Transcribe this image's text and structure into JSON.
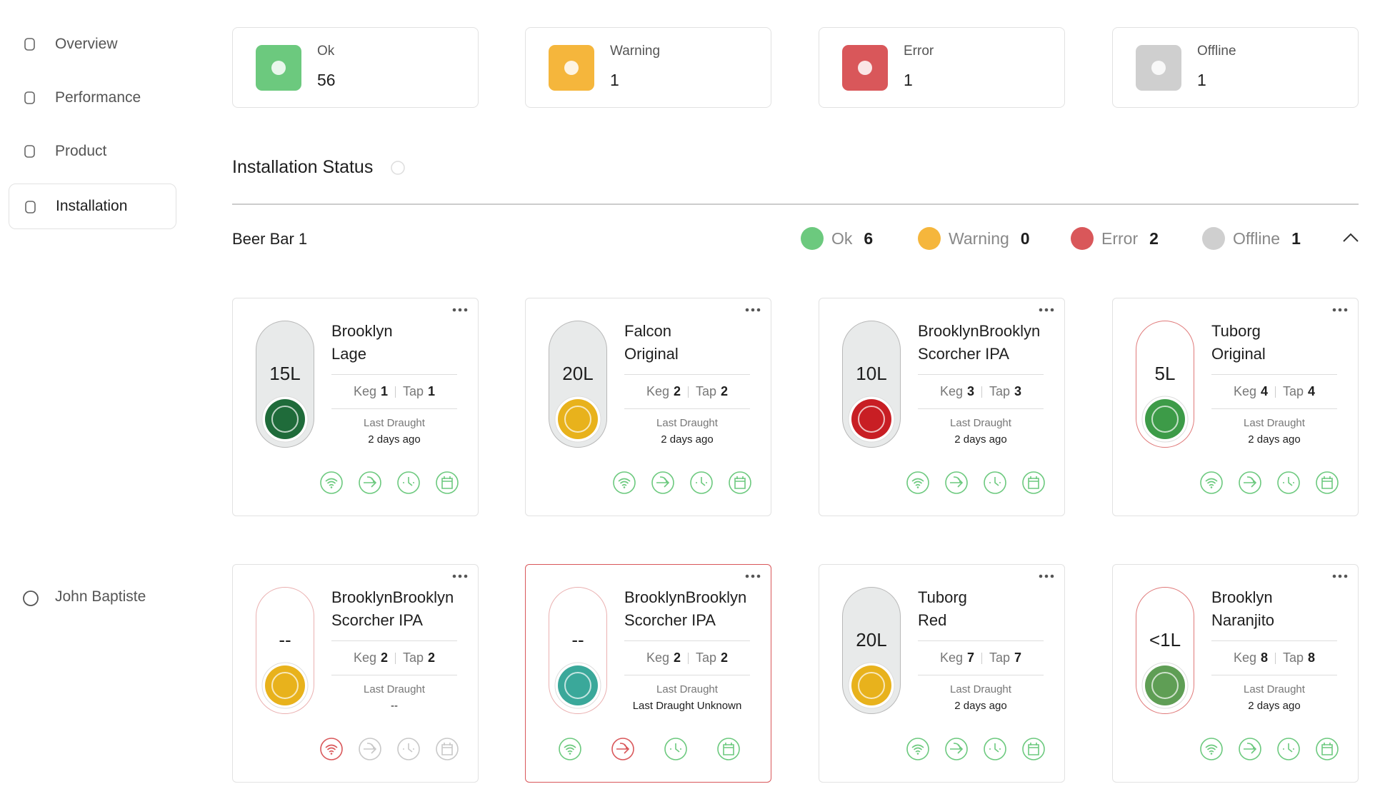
{
  "sidebar": {
    "nav": [
      "Overview",
      "Performance",
      "Product",
      "Installation"
    ],
    "active": 3,
    "user": "John Baptiste"
  },
  "summary": [
    {
      "label": "Ok",
      "value": 56,
      "color": "#6cc97e"
    },
    {
      "label": "Warning",
      "value": 1,
      "color": "#f5b63c"
    },
    {
      "label": "Error",
      "value": 1,
      "color": "#d9575a"
    },
    {
      "label": "Offline",
      "value": 1,
      "color": "#cfcfcf"
    }
  ],
  "section_title": "Installation Status",
  "bar": {
    "name": "Beer Bar 1",
    "statuses": [
      {
        "label": "Ok",
        "value": 6,
        "color": "#6cc97e"
      },
      {
        "label": "Warning",
        "value": 0,
        "color": "#f5b63c"
      },
      {
        "label": "Error",
        "value": 2,
        "color": "#d9575a"
      },
      {
        "label": "Offline",
        "value": 1,
        "color": "#cfcfcf"
      }
    ]
  },
  "labels": {
    "keg": "Keg",
    "tap": "Tap",
    "last_draught": "Last Draught"
  },
  "kegs": [
    {
      "name": [
        "Brooklyn",
        "Lage"
      ],
      "volume": "15L",
      "keg": 1,
      "tap": 1,
      "last_draught": "2 days ago",
      "logo_color": "#1f6b3a",
      "pill_border": "#b8b8b8",
      "pill_fill": "#e8eaea",
      "card_border": "#e2e2e2",
      "icon_colors": [
        "#6cc97e",
        "#6cc97e",
        "#6cc97e",
        "#6cc97e"
      ]
    },
    {
      "name": [
        "Falcon",
        "Original"
      ],
      "volume": "20L",
      "keg": 2,
      "tap": 2,
      "last_draught": "2 days ago",
      "logo_color": "#e8b21c",
      "pill_border": "#b8b8b8",
      "pill_fill": "#e8eaea",
      "card_border": "#e2e2e2",
      "icon_colors": [
        "#6cc97e",
        "#6cc97e",
        "#6cc97e",
        "#6cc97e"
      ]
    },
    {
      "name": [
        "BrooklynBrooklyn",
        "Scorcher IPA"
      ],
      "volume": "10L",
      "keg": 3,
      "tap": 3,
      "last_draught": "2 days ago",
      "logo_color": "#c81e24",
      "pill_border": "#b8b8b8",
      "pill_fill": "#e8eaea",
      "card_border": "#e2e2e2",
      "icon_colors": [
        "#6cc97e",
        "#6cc97e",
        "#6cc97e",
        "#6cc97e"
      ]
    },
    {
      "name": [
        "Tuborg",
        "Original"
      ],
      "volume": "5L",
      "keg": 4,
      "tap": 4,
      "last_draught": "2 days ago",
      "logo_color": "#3d9b48",
      "pill_border": "#e07a7a",
      "pill_fill": "#ffffff",
      "card_border": "#e2e2e2",
      "icon_colors": [
        "#6cc97e",
        "#6cc97e",
        "#6cc97e",
        "#6cc97e"
      ]
    },
    {
      "name": [
        "BrooklynBrooklyn",
        "Scorcher IPA"
      ],
      "volume": "--",
      "keg": 2,
      "tap": 2,
      "last_draught": "--",
      "logo_color": "#e8b21c",
      "pill_border": "#eab0b0",
      "pill_fill": "#ffffff",
      "card_border": "#e2e2e2",
      "icon_colors": [
        "#d9575a",
        "#c8c8c8",
        "#c8c8c8",
        "#c8c8c8"
      ]
    },
    {
      "name": [
        "BrooklynBrooklyn",
        "Scorcher IPA"
      ],
      "volume": "--",
      "keg": 2,
      "tap": 2,
      "last_draught": "Last Draught Unknown",
      "logo_color": "#3aa89a",
      "pill_border": "#eab0b0",
      "pill_fill": "#ffffff",
      "card_border": "#d9575a",
      "icon_colors": [
        "#6cc97e",
        "#d9575a",
        "#6cc97e",
        "#6cc97e"
      ]
    },
    {
      "name": [
        "Tuborg",
        "Red"
      ],
      "volume": "20L",
      "keg": 7,
      "tap": 7,
      "last_draught": "2 days ago",
      "logo_color": "#e8b21c",
      "pill_border": "#b8b8b8",
      "pill_fill": "#e8eaea",
      "card_border": "#e2e2e2",
      "icon_colors": [
        "#6cc97e",
        "#6cc97e",
        "#6cc97e",
        "#6cc97e"
      ]
    },
    {
      "name": [
        "Brooklyn",
        "Naranjito"
      ],
      "volume": "<1L",
      "keg": 8,
      "tap": 8,
      "last_draught": "2 days ago",
      "logo_color": "#5f9e55",
      "pill_border": "#e07a7a",
      "pill_fill": "#ffffff",
      "card_border": "#e2e2e2",
      "icon_colors": [
        "#6cc97e",
        "#6cc97e",
        "#6cc97e",
        "#6cc97e"
      ]
    }
  ]
}
